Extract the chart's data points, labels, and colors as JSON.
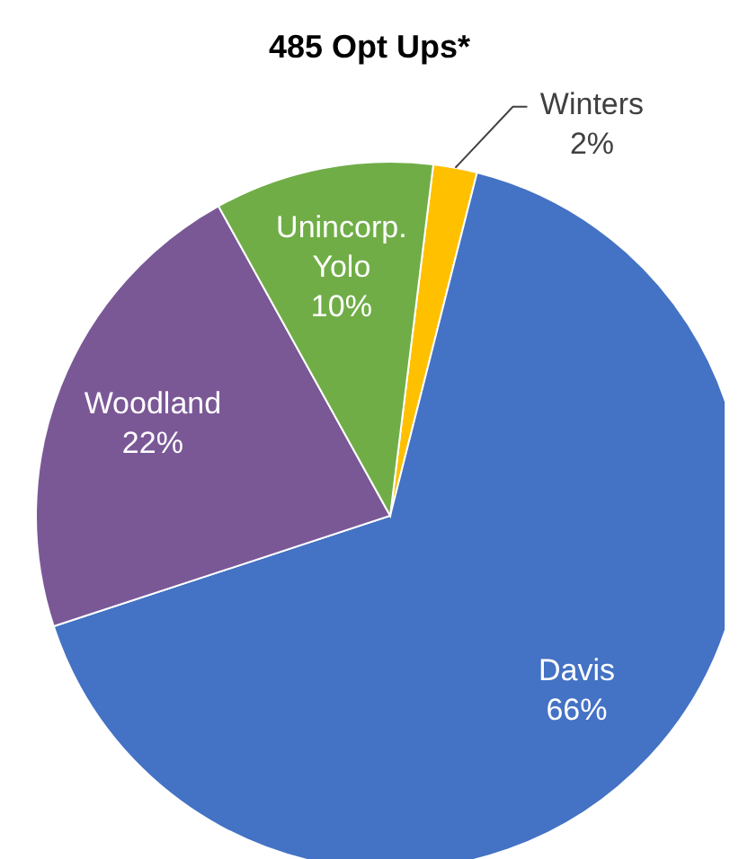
{
  "chart_data": {
    "type": "pie",
    "title": "485 Opt Ups*",
    "categories": [
      "Winters",
      "Davis",
      "Woodland",
      "Unincorp. Yolo"
    ],
    "values": [
      2,
      66,
      22,
      10
    ],
    "value_labels": [
      "2%",
      "66%",
      "22%",
      "10%"
    ],
    "colors": [
      "#ffc000",
      "#4472c4",
      "#7a5896",
      "#70ad47"
    ],
    "legend": false
  }
}
